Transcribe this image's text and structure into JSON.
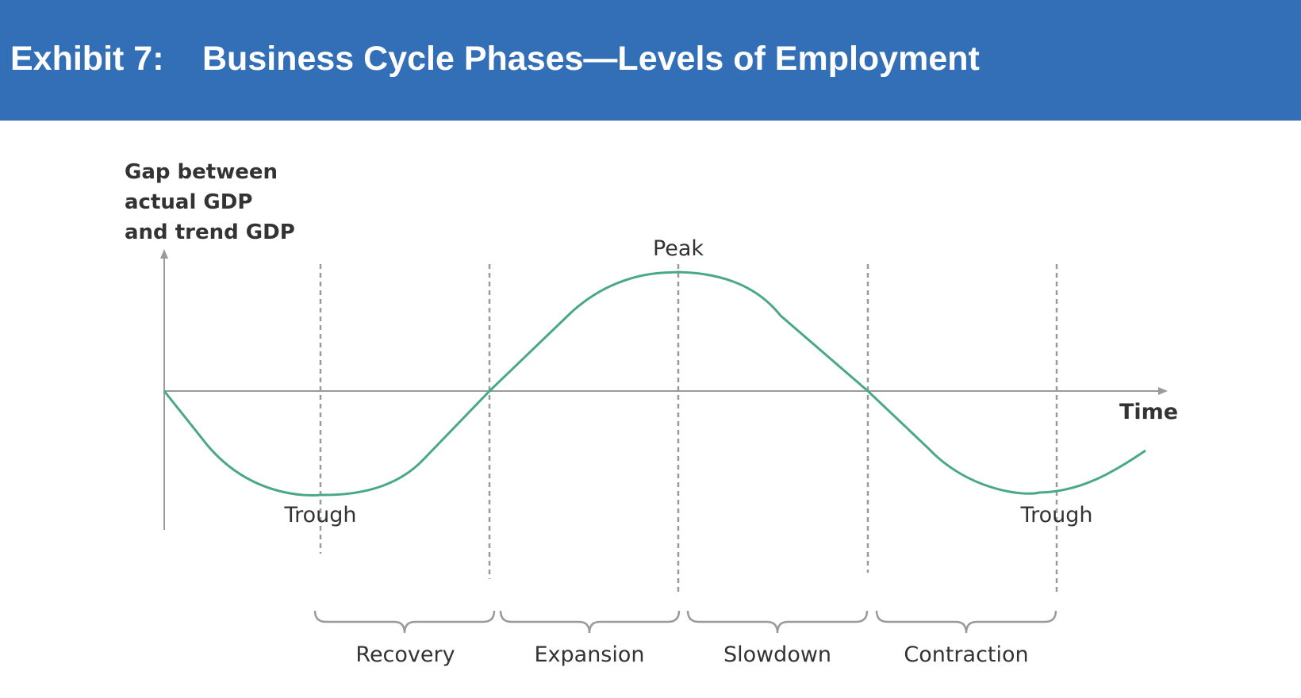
{
  "header": {
    "exhibit_label": "Exhibit 7:",
    "title": "Business Cycle Phases—Levels of Employment"
  },
  "diagram": {
    "y_axis_label": [
      "Gap between",
      "actual GDP",
      "and trend GDP"
    ],
    "x_axis_label": "Time",
    "points": {
      "trough_left": "Trough",
      "peak": "Peak",
      "trough_right": "Trough"
    },
    "phases": [
      "Recovery",
      "Expansion",
      "Slowdown",
      "Contraction"
    ],
    "colors": {
      "header_bg": "#336fb7",
      "curve": "#4aa88a",
      "axis": "#9a9a9a",
      "dashed": "#9a9a9a",
      "bracket": "#9a9a9a",
      "text": "#333333"
    }
  }
}
